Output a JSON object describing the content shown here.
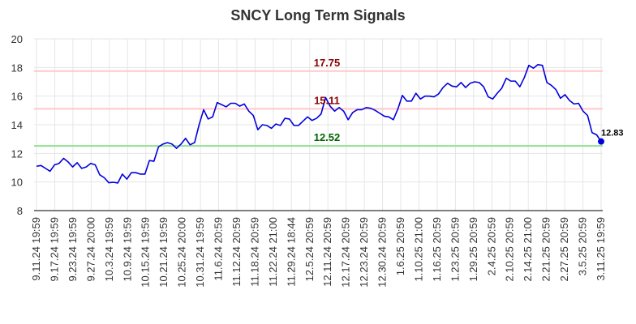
{
  "chart_data": {
    "type": "line",
    "title": "SNCY Long Term Signals",
    "xlabel": "",
    "ylabel": "",
    "ylim": [
      8,
      20
    ],
    "yticks": [
      8,
      10,
      12,
      14,
      16,
      18,
      20
    ],
    "grid": true,
    "xtick_labels": [
      "9.11.24 19:59",
      "9.17.24 19:59",
      "9.23.24 19:59",
      "9.27.24 20:00",
      "10.3.24 19:59",
      "10.9.24 19:59",
      "10.15.24 19:59",
      "10.21.24 19:59",
      "10.25.24 20:00",
      "10.31.24 19:59",
      "11.6.24 20:59",
      "11.12.24 20:59",
      "11.18.24 20:59",
      "11.22.24 21:00",
      "11.29.24 18:44",
      "12.5.24 20:59",
      "12.11.24 20:59",
      "12.17.24 20:59",
      "12.23.24 20:59",
      "12.30.24 20:59",
      "1.6.25 20:59",
      "1.10.25 21:00",
      "1.16.25 20:59",
      "1.23.25 20:59",
      "1.29.25 20:59",
      "2.4.25 20:59",
      "2.10.25 20:59",
      "2.14.25 21:00",
      "2.21.25 20:59",
      "2.27.25 20:59",
      "3.5.25 20:59",
      "3.11.25 19:59"
    ],
    "series": [
      {
        "color": "#0000dd",
        "values": [
          11.1,
          11.15,
          10.95,
          10.75,
          11.2,
          11.3,
          11.65,
          11.4,
          11.05,
          11.35,
          10.95,
          11.05,
          11.3,
          11.2,
          10.5,
          10.3,
          9.95,
          9.98,
          9.93,
          10.55,
          10.2,
          10.65,
          10.65,
          10.55,
          10.55,
          11.5,
          11.45,
          12.45,
          12.65,
          12.75,
          12.65,
          12.35,
          12.65,
          13.05,
          12.6,
          12.75,
          14.0,
          15.05,
          14.4,
          14.55,
          15.55,
          15.4,
          15.25,
          15.5,
          15.5,
          15.3,
          15.45,
          14.95,
          14.65,
          13.65,
          14.0,
          13.95,
          13.75,
          14.05,
          13.95,
          14.45,
          14.4,
          13.95,
          13.95,
          14.25,
          14.55,
          14.3,
          14.45,
          14.75,
          15.9,
          15.3,
          14.95,
          15.2,
          14.95,
          14.35,
          14.85,
          15.05,
          15.05,
          15.2,
          15.15,
          15.0,
          14.8,
          14.6,
          14.55,
          14.35,
          15.1,
          16.05,
          15.65,
          15.65,
          16.2,
          15.8,
          16.0,
          16.0,
          15.95,
          16.15,
          16.6,
          16.9,
          16.7,
          16.65,
          16.95,
          16.6,
          16.9,
          17.0,
          16.95,
          16.65,
          15.95,
          15.8,
          16.2,
          16.55,
          17.25,
          17.05,
          17.05,
          16.65,
          17.3,
          18.15,
          17.95,
          18.2,
          18.15,
          16.95,
          16.75,
          16.45,
          15.85,
          16.1,
          15.7,
          15.45,
          15.5,
          14.95,
          14.65,
          13.45,
          13.3,
          12.83
        ]
      }
    ],
    "reference_lines": [
      {
        "value": 17.75,
        "label": "17.75",
        "line_color": "#ffc8c8",
        "text_color": "#8b0000"
      },
      {
        "value": 15.11,
        "label": "15.11",
        "line_color": "#ffc8c8",
        "text_color": "#8b0000"
      },
      {
        "value": 12.52,
        "label": "12.52",
        "line_color": "#90e090",
        "text_color": "#006400"
      }
    ],
    "last_value": {
      "value": 12.83,
      "label": "12.83",
      "color": "#0000dd"
    }
  }
}
